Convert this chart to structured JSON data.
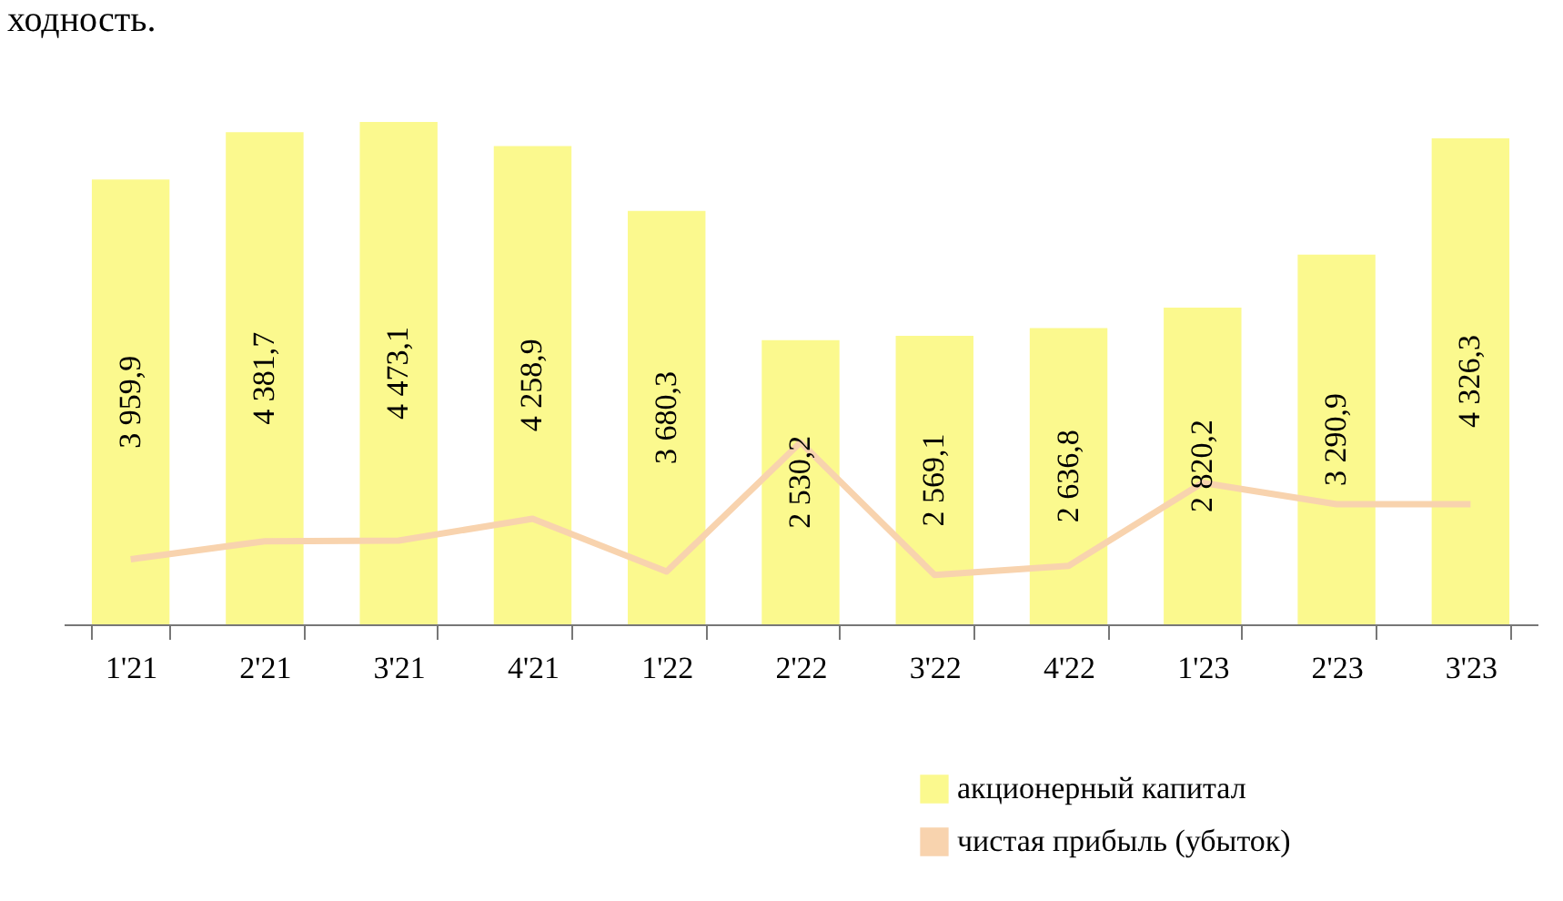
{
  "chart_data": {
    "type": "bar",
    "annotations": [
      "ходность."
    ],
    "categories": [
      "1'21",
      "2'21",
      "3'21",
      "4'21",
      "1'22",
      "2'22",
      "3'22",
      "4'22",
      "1'23",
      "2'23",
      "3'23"
    ],
    "series": [
      {
        "name": "акционерный капитал",
        "color": "#fbf98e",
        "values": [
          3959.9,
          4381.7,
          4473.1,
          4258.9,
          3680.3,
          2530.2,
          2569.1,
          2636.8,
          2820.2,
          3290.9,
          4326.3
        ],
        "value_labels": [
          "3 959,9",
          "4 381,7",
          "4 473,1",
          "4 258,9",
          "3 680,3",
          "2 530,2",
          "2 569,1",
          "2 636,8",
          "2 820,2",
          "3 290,9",
          "4 326,3"
        ]
      },
      {
        "name": "чистая прибыль (убыток)",
        "type": "line",
        "color": "#f8d3ae",
        "values": [
          580,
          740,
          745,
          940,
          470,
          1620,
          440,
          520,
          1260,
          1070,
          1070
        ]
      }
    ],
    "legend": "bottom right",
    "grid": false,
    "marker": "none"
  }
}
